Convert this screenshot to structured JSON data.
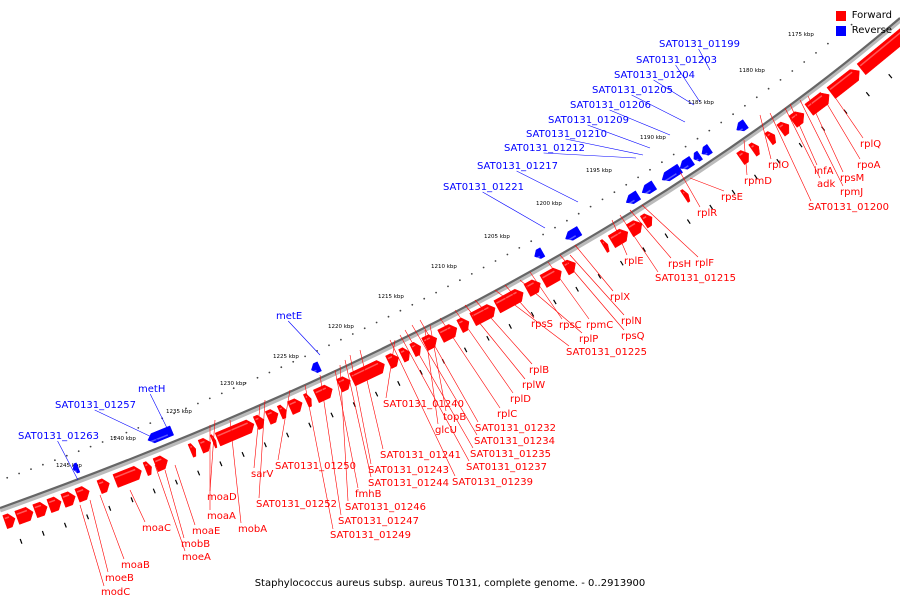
{
  "caption": "Staphylococcus aureus subsp. aureus T0131, complete genome. - 0..2913900",
  "legend": [
    {
      "label": "Forward",
      "color": "#ff0000"
    },
    {
      "label": "Reverse",
      "color": "#0000ff"
    }
  ],
  "colors": {
    "forward": "#ff0000",
    "reverse": "#0000ff",
    "backbone": "#888888"
  },
  "ticks": [
    "1175 kbp",
    "1180 kbp",
    "1185 kbp",
    "1190 kbp",
    "1195 kbp",
    "1200 kbp",
    "1205 kbp",
    "1210 kbp",
    "1215 kbp",
    "1220 kbp",
    "1225 kbp",
    "1230 kbp",
    "1235 kbp",
    "1240 kbp",
    "1245 kbp"
  ],
  "reverse_genes": [
    "SAT0131_01199",
    "SAT0131_01203",
    "SAT0131_01204",
    "SAT0131_01205",
    "SAT0131_01206",
    "SAT0131_01209",
    "SAT0131_01210",
    "SAT0131_01212",
    "SAT0131_01217",
    "SAT0131_01221",
    "metE",
    "metH",
    "SAT0131_01257",
    "SAT0131_01263"
  ],
  "forward_genes": [
    "rplQ",
    "rpoA",
    "rpsM",
    "rpmJ",
    "infA",
    "adk",
    "SAT0131_01200",
    "rplO",
    "rpmD",
    "rpsE",
    "rplR",
    "rplF",
    "rpsH",
    "rplE",
    "SAT0131_01215",
    "rplX",
    "rplN",
    "rpsQ",
    "rpmC",
    "rpsC",
    "rplP",
    "rpsS",
    "SAT0131_01225",
    "rplB",
    "rplW",
    "rplD",
    "rplC",
    "SAT0131_01232",
    "SAT0131_01234",
    "SAT0131_01235",
    "SAT0131_01237",
    "SAT0131_01239",
    "topB",
    "glcU",
    "SAT0131_01240",
    "SAT0131_01241",
    "SAT0131_01243",
    "SAT0131_01244",
    "SAT0131_01246",
    "fmhB",
    "SAT0131_01247",
    "SAT0131_01249",
    "SAT0131_01250",
    "SAT0131_01252",
    "sarV",
    "moaD",
    "moaA",
    "mobA",
    "moaE",
    "mobB",
    "moaC",
    "moaB",
    "moeA",
    "moeB",
    "modC"
  ]
}
